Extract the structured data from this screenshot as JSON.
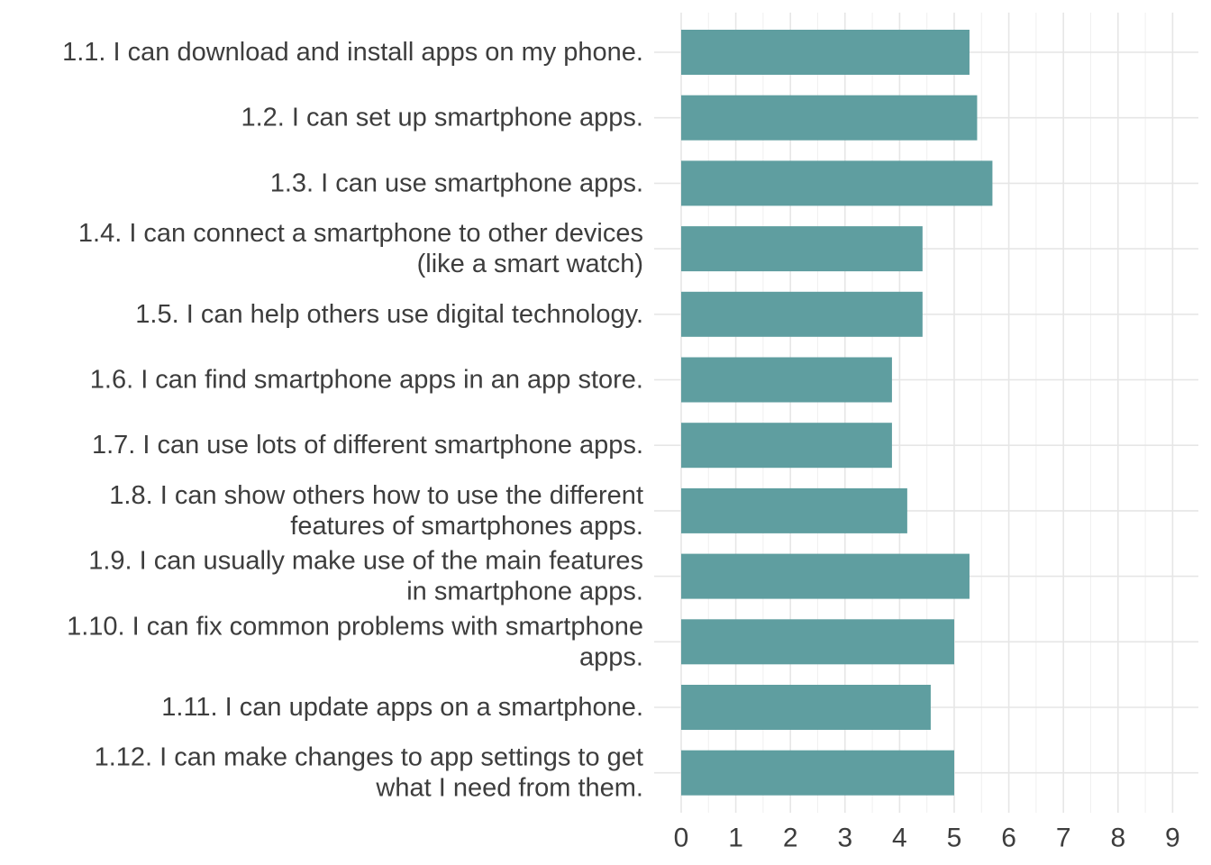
{
  "chart_data": {
    "type": "bar",
    "orientation": "horizontal",
    "categories": [
      [
        "1.1. I can download and install apps on my phone."
      ],
      [
        "1.2. I can set up smartphone apps."
      ],
      [
        "1.3. I can use smartphone apps."
      ],
      [
        "1.4. I can connect a smartphone to other devices",
        "(like a smart watch)"
      ],
      [
        "1.5. I can help others use digital technology."
      ],
      [
        "1.6. I can find smartphone apps in an app store."
      ],
      [
        "1.7. I can use lots of different smartphone apps."
      ],
      [
        "1.8. I can show others how to use the different",
        "features of smartphones apps."
      ],
      [
        "1.9. I can usually make use of the main features",
        "in smartphone apps."
      ],
      [
        "1.10. I can fix common problems with smartphone",
        "apps."
      ],
      [
        "1.11. I can update apps on a smartphone."
      ],
      [
        "1.12. I can make changes to app settings to get",
        "what I need from them."
      ]
    ],
    "values": [
      5.28,
      5.42,
      5.7,
      4.42,
      4.42,
      3.86,
      3.86,
      4.14,
      5.28,
      5.0,
      4.57,
      5.0
    ],
    "xlim": [
      0,
      9.4
    ],
    "xticks": [
      "0",
      "1",
      "2",
      "3",
      "4",
      "5",
      "6",
      "7",
      "8",
      "9"
    ],
    "grid": true,
    "legend": "none",
    "bar_color": "#5f9ea0",
    "title": "",
    "xlabel": "",
    "ylabel": ""
  }
}
